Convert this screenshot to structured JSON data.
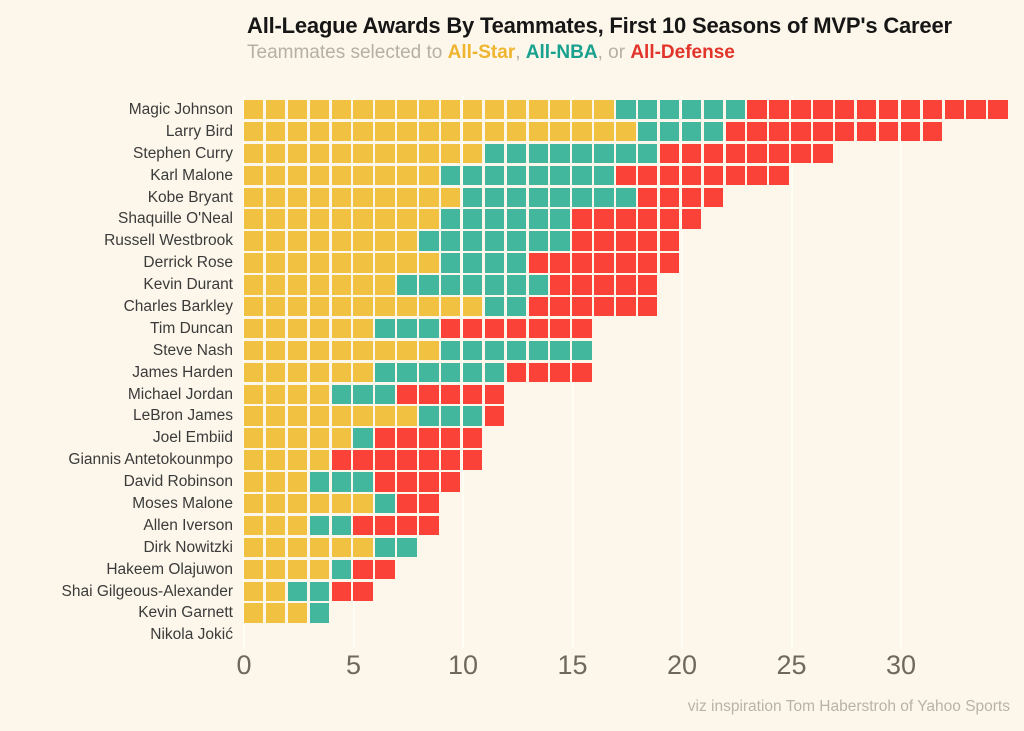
{
  "title": "All-League Awards By Teammates, First 10 Seasons of MVP's Career",
  "subtitle": {
    "prefix": "Teammates selected to ",
    "star_label": "All-Star",
    "sep1": ", ",
    "nba_label": "All-NBA",
    "sep2": ", or ",
    "defense_label": "All-Defense"
  },
  "footer": "viz inspiration Tom Haberstroh of Yahoo Sports",
  "colors": {
    "background": "#FCF7EA",
    "all_star": "#F1C241",
    "all_nba": "#43B69E",
    "all_defense": "#FB4238",
    "subtitle_star": "#EFB52F",
    "subtitle_nba": "#18A18F",
    "subtitle_defense": "#E2342A",
    "grid": "#FFFEF5",
    "axis_text": "#6E695E",
    "label_text": "#3B3B3B",
    "title_text": "#161616",
    "subtitle_text": "#B6B0A4"
  },
  "chart_data": {
    "type": "bar",
    "stacked": true,
    "orientation": "horizontal",
    "note": "waffle-style stacked bars; one square = one award won by a teammate",
    "legend": [
      "All-Star",
      "All-NBA",
      "All-Defense"
    ],
    "x_ticks": [
      0,
      5,
      10,
      15,
      20,
      25,
      30
    ],
    "xlim": [
      0,
      36
    ],
    "grid": true,
    "series_keys": [
      "all_star",
      "all_nba",
      "all_defense"
    ],
    "players": [
      {
        "name": "Magic Johnson",
        "all_star": 17,
        "all_nba": 6,
        "all_defense": 12,
        "total": 35
      },
      {
        "name": "Larry Bird",
        "all_star": 18,
        "all_nba": 4,
        "all_defense": 10,
        "total": 32
      },
      {
        "name": "Stephen Curry",
        "all_star": 11,
        "all_nba": 8,
        "all_defense": 8,
        "total": 27
      },
      {
        "name": "Karl Malone",
        "all_star": 9,
        "all_nba": 8,
        "all_defense": 8,
        "total": 25
      },
      {
        "name": "Kobe Bryant",
        "all_star": 10,
        "all_nba": 8,
        "all_defense": 4,
        "total": 22
      },
      {
        "name": "Shaquille O'Neal",
        "all_star": 9,
        "all_nba": 6,
        "all_defense": 6,
        "total": 21
      },
      {
        "name": "Russell Westbrook",
        "all_star": 8,
        "all_nba": 7,
        "all_defense": 5,
        "total": 20
      },
      {
        "name": "Derrick Rose",
        "all_star": 9,
        "all_nba": 4,
        "all_defense": 7,
        "total": 20
      },
      {
        "name": "Kevin Durant",
        "all_star": 7,
        "all_nba": 7,
        "all_defense": 5,
        "total": 19
      },
      {
        "name": "Charles Barkley",
        "all_star": 11,
        "all_nba": 2,
        "all_defense": 6,
        "total": 19
      },
      {
        "name": "Tim Duncan",
        "all_star": 6,
        "all_nba": 3,
        "all_defense": 7,
        "total": 16
      },
      {
        "name": "Steve Nash",
        "all_star": 9,
        "all_nba": 7,
        "all_defense": 0,
        "total": 16
      },
      {
        "name": "James Harden",
        "all_star": 6,
        "all_nba": 6,
        "all_defense": 4,
        "total": 16
      },
      {
        "name": "Michael Jordan",
        "all_star": 4,
        "all_nba": 3,
        "all_defense": 5,
        "total": 12
      },
      {
        "name": "LeBron James",
        "all_star": 8,
        "all_nba": 3,
        "all_defense": 1,
        "total": 12
      },
      {
        "name": "Joel Embiid",
        "all_star": 5,
        "all_nba": 1,
        "all_defense": 5,
        "total": 11
      },
      {
        "name": "Giannis Antetokounmpo",
        "all_star": 4,
        "all_nba": 0,
        "all_defense": 7,
        "total": 11
      },
      {
        "name": "David Robinson",
        "all_star": 3,
        "all_nba": 3,
        "all_defense": 4,
        "total": 10
      },
      {
        "name": "Moses Malone",
        "all_star": 6,
        "all_nba": 1,
        "all_defense": 2,
        "total": 9
      },
      {
        "name": "Allen Iverson",
        "all_star": 3,
        "all_nba": 2,
        "all_defense": 4,
        "total": 9
      },
      {
        "name": "Dirk Nowitzki",
        "all_star": 6,
        "all_nba": 2,
        "all_defense": 0,
        "total": 8
      },
      {
        "name": "Hakeem Olajuwon",
        "all_star": 4,
        "all_nba": 1,
        "all_defense": 2,
        "total": 7
      },
      {
        "name": "Shai Gilgeous-Alexander",
        "all_star": 2,
        "all_nba": 2,
        "all_defense": 2,
        "total": 6
      },
      {
        "name": "Kevin Garnett",
        "all_star": 3,
        "all_nba": 1,
        "all_defense": 0,
        "total": 4
      },
      {
        "name": "Nikola Jokić",
        "all_star": 0,
        "all_nba": 0,
        "all_defense": 0,
        "total": 0
      }
    ]
  }
}
